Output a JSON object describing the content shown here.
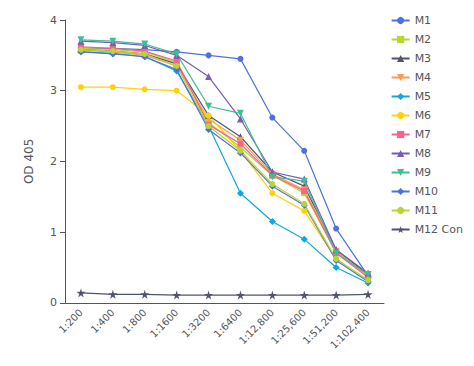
{
  "chart_data": {
    "type": "line",
    "categories": [
      "1:200",
      "1:400",
      "1:800",
      "1:1600",
      "1:3200",
      "1:6400",
      "1:12,800",
      "1:25,600",
      "1:51,200",
      "1:102,400"
    ],
    "series": [
      {
        "name": "M1",
        "marker": "circle",
        "values": [
          3.6,
          3.6,
          3.58,
          3.55,
          3.5,
          3.45,
          2.62,
          2.15,
          1.05,
          0.38
        ]
      },
      {
        "name": "M2",
        "marker": "square",
        "values": [
          3.6,
          3.58,
          3.55,
          3.4,
          2.55,
          2.2,
          1.8,
          1.55,
          0.72,
          0.36
        ]
      },
      {
        "name": "M3",
        "marker": "triangle-up",
        "values": [
          3.58,
          3.56,
          3.52,
          3.38,
          2.65,
          2.35,
          1.85,
          1.65,
          0.75,
          0.4
        ]
      },
      {
        "name": "M4",
        "marker": "triangle-down",
        "values": [
          3.57,
          3.55,
          3.5,
          3.35,
          2.6,
          2.3,
          1.82,
          1.6,
          0.73,
          0.38
        ]
      },
      {
        "name": "M5",
        "marker": "diamond",
        "values": [
          3.55,
          3.53,
          3.48,
          3.28,
          2.5,
          1.55,
          1.15,
          0.9,
          0.5,
          0.28
        ]
      },
      {
        "name": "M6",
        "marker": "circle",
        "values": [
          3.05,
          3.05,
          3.02,
          3.0,
          2.65,
          2.15,
          1.55,
          1.3,
          0.62,
          0.32
        ]
      },
      {
        "name": "M7",
        "marker": "square",
        "values": [
          3.62,
          3.6,
          3.56,
          3.42,
          2.52,
          2.25,
          1.8,
          1.58,
          0.7,
          0.36
        ]
      },
      {
        "name": "M8",
        "marker": "triangle-up",
        "values": [
          3.7,
          3.68,
          3.64,
          3.5,
          3.2,
          2.6,
          1.85,
          1.75,
          0.75,
          0.42
        ]
      },
      {
        "name": "M9",
        "marker": "triangle-down",
        "values": [
          3.72,
          3.7,
          3.66,
          3.52,
          2.78,
          2.68,
          1.78,
          1.72,
          0.7,
          0.4
        ]
      },
      {
        "name": "M10",
        "marker": "diamond",
        "values": [
          3.55,
          3.52,
          3.48,
          3.3,
          2.45,
          2.12,
          1.65,
          1.38,
          0.6,
          0.3
        ]
      },
      {
        "name": "M11",
        "marker": "circle",
        "values": [
          3.58,
          3.56,
          3.52,
          3.35,
          2.5,
          2.15,
          1.68,
          1.4,
          0.62,
          0.32
        ]
      },
      {
        "name": "M12 Con",
        "marker": "star",
        "values": [
          0.14,
          0.12,
          0.12,
          0.11,
          0.11,
          0.11,
          0.11,
          0.11,
          0.11,
          0.12
        ]
      }
    ],
    "ylabel": "OD 405",
    "ylim": [
      0,
      4
    ],
    "yticks": [
      0,
      1,
      2,
      3,
      4
    ],
    "grid": false,
    "legend": "upper right"
  }
}
